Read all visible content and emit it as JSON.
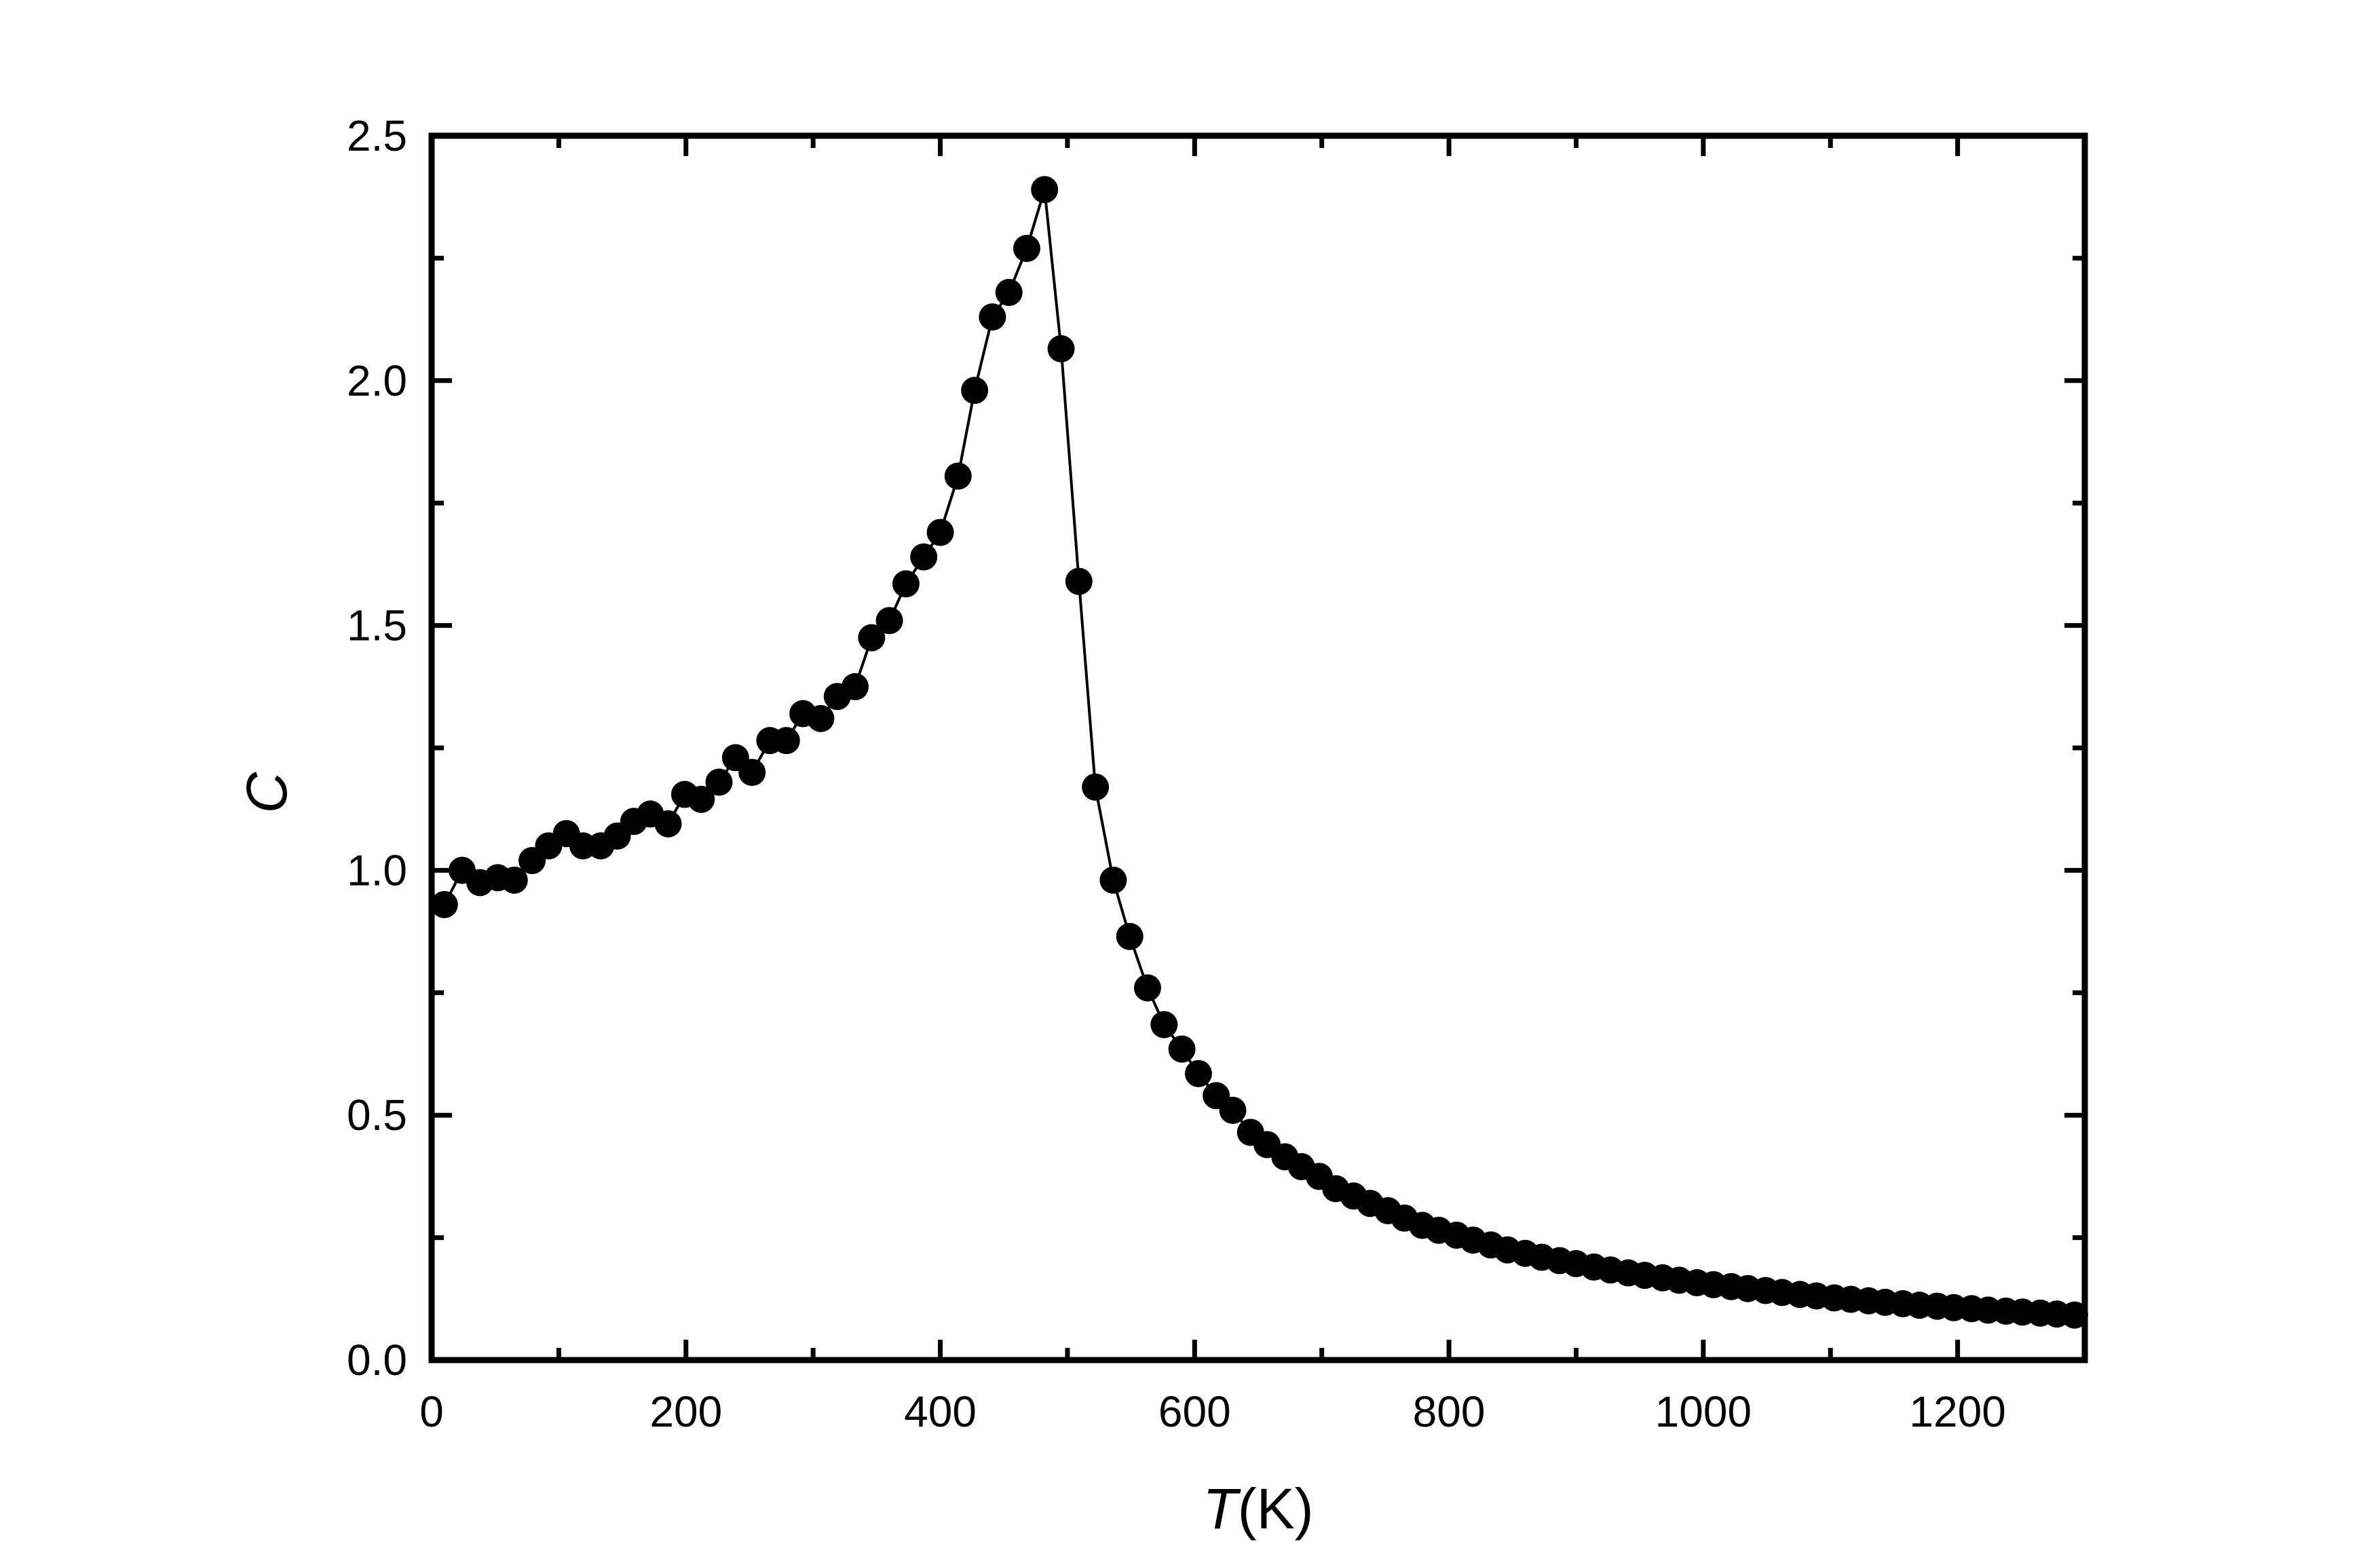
{
  "chart_data": {
    "type": "scatter",
    "title": "",
    "xlabel": {
      "italic": "T",
      "rest": "(K)"
    },
    "ylabel": "C",
    "xlim": [
      0,
      1300
    ],
    "ylim": [
      0,
      2.5
    ],
    "x_ticks": [
      0,
      200,
      400,
      600,
      800,
      1000,
      1200
    ],
    "x_tick_labels": [
      "0",
      "200",
      "400",
      "600",
      "800",
      "1000",
      "1200"
    ],
    "y_ticks": [
      0,
      0.5,
      1.0,
      1.5,
      2.0,
      2.5
    ],
    "y_tick_labels": [
      "0.0",
      "0.5",
      "1.0",
      "1.5",
      "2.0",
      "2.5"
    ],
    "grid": false,
    "legend": "none",
    "marker_color": "#000000",
    "line_color": "#000000",
    "series": [
      {
        "style": "line+circle-markers",
        "points": [
          [
            10,
            0.93
          ],
          [
            24,
            1.0
          ],
          [
            38,
            0.975
          ],
          [
            52,
            0.985
          ],
          [
            65,
            0.98
          ],
          [
            79,
            1.02
          ],
          [
            92,
            1.05
          ],
          [
            106,
            1.075
          ],
          [
            119,
            1.05
          ],
          [
            133,
            1.05
          ],
          [
            146,
            1.07
          ],
          [
            159,
            1.1
          ],
          [
            172,
            1.115
          ],
          [
            186,
            1.095
          ],
          [
            199,
            1.155
          ],
          [
            212,
            1.145
          ],
          [
            226,
            1.18
          ],
          [
            239,
            1.23
          ],
          [
            252,
            1.2
          ],
          [
            266,
            1.265
          ],
          [
            279,
            1.265
          ],
          [
            292,
            1.32
          ],
          [
            306,
            1.31
          ],
          [
            319,
            1.355
          ],
          [
            333,
            1.375
          ],
          [
            346,
            1.475
          ],
          [
            360,
            1.51
          ],
          [
            373,
            1.585
          ],
          [
            387,
            1.64
          ],
          [
            400,
            1.69
          ],
          [
            414,
            1.805
          ],
          [
            427,
            1.98
          ],
          [
            441,
            2.13
          ],
          [
            454,
            2.18
          ],
          [
            468,
            2.27
          ],
          [
            482,
            2.39
          ],
          [
            495,
            2.065
          ],
          [
            509,
            1.59
          ],
          [
            522,
            1.17
          ],
          [
            536,
            0.98
          ],
          [
            549,
            0.865
          ],
          [
            563,
            0.76
          ],
          [
            576,
            0.685
          ],
          [
            590,
            0.635
          ],
          [
            603,
            0.585
          ],
          [
            617,
            0.54
          ],
          [
            630,
            0.51
          ],
          [
            644,
            0.465
          ],
          [
            657,
            0.44
          ],
          [
            671,
            0.415
          ],
          [
            684,
            0.395
          ],
          [
            698,
            0.375
          ],
          [
            711,
            0.35
          ],
          [
            725,
            0.335
          ],
          [
            738,
            0.32
          ],
          [
            752,
            0.305
          ],
          [
            765,
            0.29
          ],
          [
            779,
            0.275
          ],
          [
            792,
            0.265
          ],
          [
            806,
            0.255
          ],
          [
            819,
            0.245
          ],
          [
            833,
            0.235
          ],
          [
            846,
            0.225
          ],
          [
            860,
            0.218
          ],
          [
            873,
            0.21
          ],
          [
            887,
            0.203
          ],
          [
            900,
            0.197
          ],
          [
            914,
            0.19
          ],
          [
            927,
            0.184
          ],
          [
            941,
            0.178
          ],
          [
            954,
            0.173
          ],
          [
            968,
            0.168
          ],
          [
            981,
            0.163
          ],
          [
            995,
            0.158
          ],
          [
            1008,
            0.154
          ],
          [
            1022,
            0.15
          ],
          [
            1035,
            0.146
          ],
          [
            1049,
            0.142
          ],
          [
            1062,
            0.138
          ],
          [
            1076,
            0.134
          ],
          [
            1089,
            0.131
          ],
          [
            1103,
            0.127
          ],
          [
            1116,
            0.124
          ],
          [
            1130,
            0.121
          ],
          [
            1143,
            0.118
          ],
          [
            1157,
            0.115
          ],
          [
            1170,
            0.112
          ],
          [
            1184,
            0.11
          ],
          [
            1197,
            0.107
          ],
          [
            1211,
            0.105
          ],
          [
            1224,
            0.102
          ],
          [
            1238,
            0.1
          ],
          [
            1251,
            0.098
          ],
          [
            1265,
            0.096
          ],
          [
            1278,
            0.094
          ],
          [
            1292,
            0.092
          ]
        ]
      }
    ]
  }
}
